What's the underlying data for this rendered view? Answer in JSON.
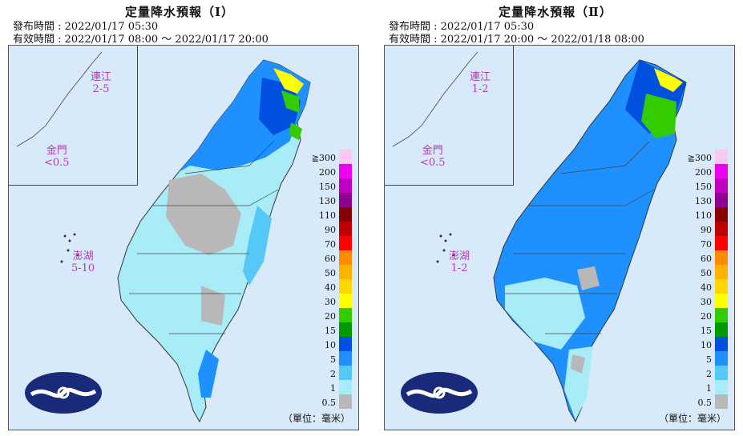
{
  "panels": [
    {
      "title": "定量降水預報（Ⅰ）",
      "issue_time": "發布時間 : 2022/01/17 05:30",
      "valid_time": "有效時間 : 2022/01/17 08:00 ～ 2022/01/17 20:00",
      "islands": [
        {
          "name": "連江",
          "value": "2-5"
        },
        {
          "name": "金門",
          "value": "<0.5"
        },
        {
          "name": "澎湖",
          "value": "5-10"
        }
      ],
      "unit_label": "（單位：毫米）"
    },
    {
      "title": "定量降水預報（Ⅱ）",
      "issue_time": "發布時間 : 2022/01/17 05:30",
      "valid_time": "有效時間 : 2022/01/17 20:00 ～ 2022/01/18 08:00",
      "islands": [
        {
          "name": "連江",
          "value": "1-2"
        },
        {
          "name": "金門",
          "value": "<0.5"
        },
        {
          "name": "澎湖",
          "value": "1-2"
        }
      ],
      "unit_label": "（單位：毫米）"
    }
  ],
  "legend": [
    {
      "label": "≧300",
      "color": "#f9c8f3"
    },
    {
      "label": "200",
      "color": "#f000f0"
    },
    {
      "label": "150",
      "color": "#c000c0"
    },
    {
      "label": "130",
      "color": "#900090"
    },
    {
      "label": "110",
      "color": "#8a0000"
    },
    {
      "label": "90",
      "color": "#c00000"
    },
    {
      "label": "70",
      "color": "#ff0000"
    },
    {
      "label": "60",
      "color": "#ff8c00"
    },
    {
      "label": "50",
      "color": "#ffb200"
    },
    {
      "label": "40",
      "color": "#ffd700"
    },
    {
      "label": "30",
      "color": "#ffff00"
    },
    {
      "label": "20",
      "color": "#33cc00"
    },
    {
      "label": "15",
      "color": "#009a00"
    },
    {
      "label": "10",
      "color": "#0050e0"
    },
    {
      "label": "5",
      "color": "#1e90ff"
    },
    {
      "label": "2",
      "color": "#55c8f5"
    },
    {
      "label": "1",
      "color": "#a8ecf8"
    },
    {
      "label": "0.5",
      "color": "#b8b8b8"
    }
  ],
  "logo_name": "cwb-logo"
}
